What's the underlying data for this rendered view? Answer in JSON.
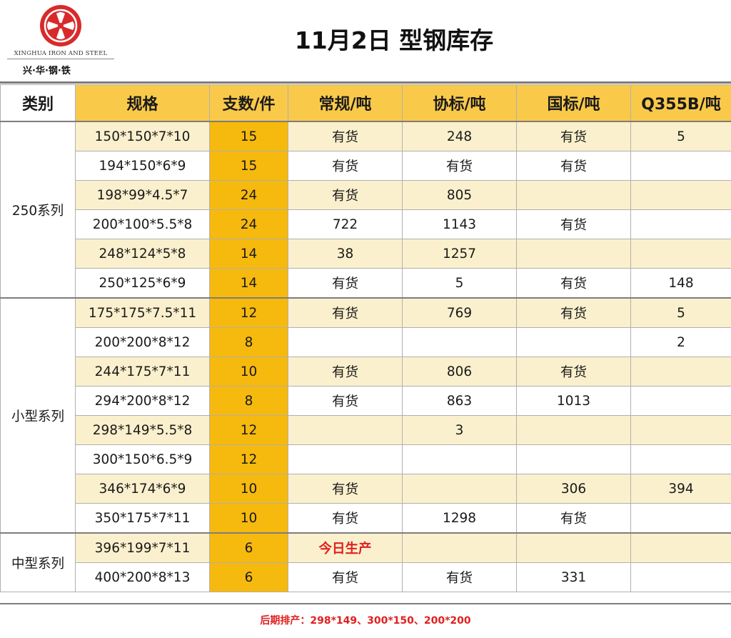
{
  "header": {
    "logo_en": "XINGHUA IRON AND STEEL",
    "logo_cn": "兴·华·钢·铁",
    "title": "11月2日  型钢库存"
  },
  "table": {
    "headers": [
      "类别",
      "规格",
      "支数/件",
      "常规/吨",
      "协标/吨",
      "国标/吨",
      "Q355B/吨"
    ],
    "groups": [
      {
        "category": "250系列",
        "rows": [
          {
            "spec": "150*150*7*10",
            "qty": "15",
            "regular": "有货",
            "assoc": "248",
            "national": "有货",
            "q355b": "5"
          },
          {
            "spec": "194*150*6*9",
            "qty": "15",
            "regular": "有货",
            "assoc": "有货",
            "national": "有货",
            "q355b": ""
          },
          {
            "spec": "198*99*4.5*7",
            "qty": "24",
            "regular": "有货",
            "assoc": "805",
            "national": "",
            "q355b": ""
          },
          {
            "spec": "200*100*5.5*8",
            "qty": "24",
            "regular": "722",
            "assoc": "1143",
            "national": "有货",
            "q355b": ""
          },
          {
            "spec": "248*124*5*8",
            "qty": "14",
            "regular": "38",
            "assoc": "1257",
            "national": "",
            "q355b": ""
          },
          {
            "spec": "250*125*6*9",
            "qty": "14",
            "regular": "有货",
            "assoc": "5",
            "national": "有货",
            "q355b": "148"
          }
        ]
      },
      {
        "category": "小型系列",
        "rows": [
          {
            "spec": "175*175*7.5*11",
            "qty": "12",
            "regular": "有货",
            "assoc": "769",
            "national": "有货",
            "q355b": "5"
          },
          {
            "spec": "200*200*8*12",
            "qty": "8",
            "regular": "",
            "assoc": "",
            "national": "",
            "q355b": "2"
          },
          {
            "spec": "244*175*7*11",
            "qty": "10",
            "regular": "有货",
            "assoc": "806",
            "national": "有货",
            "q355b": ""
          },
          {
            "spec": "294*200*8*12",
            "qty": "8",
            "regular": "有货",
            "assoc": "863",
            "national": "1013",
            "q355b": ""
          },
          {
            "spec": "298*149*5.5*8",
            "qty": "12",
            "regular": "",
            "assoc": "3",
            "national": "",
            "q355b": ""
          },
          {
            "spec": "300*150*6.5*9",
            "qty": "12",
            "regular": "",
            "assoc": "",
            "national": "",
            "q355b": ""
          },
          {
            "spec": "346*174*6*9",
            "qty": "10",
            "regular": "有货",
            "assoc": "",
            "national": "306",
            "q355b": "394"
          },
          {
            "spec": "350*175*7*11",
            "qty": "10",
            "regular": "有货",
            "assoc": "1298",
            "national": "有货",
            "q355b": ""
          }
        ]
      },
      {
        "category": "中型系列",
        "rows": [
          {
            "spec": "396*199*7*11",
            "qty": "6",
            "regular": "今日生产",
            "assoc": "",
            "national": "",
            "q355b": "",
            "highlight": "regular"
          },
          {
            "spec": "400*200*8*13",
            "qty": "6",
            "regular": "有货",
            "assoc": "有货",
            "national": "331",
            "q355b": ""
          }
        ]
      }
    ]
  },
  "footer": {
    "note": "后期排产：298*149、300*150、200*200"
  },
  "colors": {
    "header_fill": "#f9c94a",
    "qty_fill": "#f6b90e",
    "row_band": "#fbf0cd",
    "alert_red": "#e02020",
    "logo_red": "#d92a2a"
  },
  "icons": [
    "xinghua-logo-icon"
  ]
}
